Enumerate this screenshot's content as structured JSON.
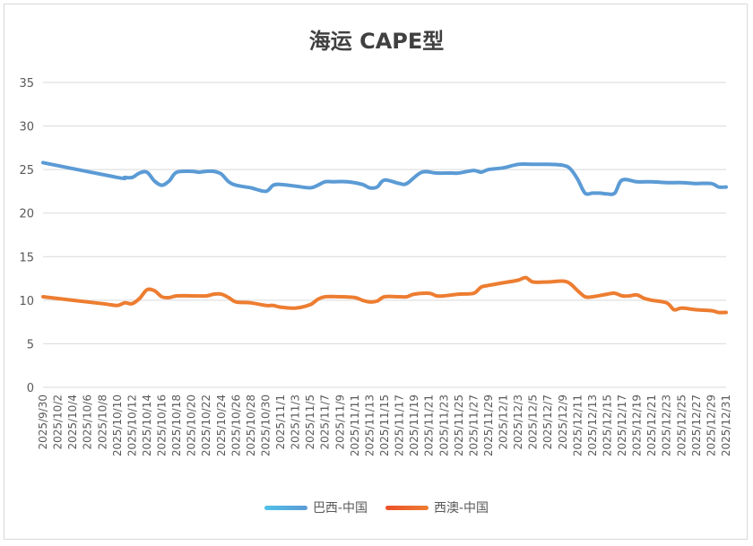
{
  "chart_data": {
    "type": "line",
    "title": "海运 CAPE型",
    "ylim": [
      0,
      35
    ],
    "yticks": [
      0,
      5,
      10,
      15,
      20,
      25,
      30,
      35
    ],
    "grid": true,
    "legend_position": "bottom",
    "x_tick_labels": [
      "2025/9/30",
      "2025/10/2",
      "2025/10/4",
      "2025/10/6",
      "2025/10/8",
      "2025/10/10",
      "2025/10/12",
      "2025/10/14",
      "2025/10/16",
      "2025/10/18",
      "2025/10/20",
      "2025/10/22",
      "2025/10/24",
      "2025/10/26",
      "2025/10/28",
      "2025/10/30",
      "2025/11/1",
      "2025/11/3",
      "2025/11/5",
      "2025/11/7",
      "2025/11/9",
      "2025/11/11",
      "2025/11/13",
      "2025/11/15",
      "2025/11/17",
      "2025/11/19",
      "2025/11/21",
      "2025/11/23",
      "2025/11/25",
      "2025/11/27",
      "2025/11/29",
      "2025/12/1",
      "2025/12/3",
      "2025/12/5",
      "2025/12/7",
      "2025/12/9",
      "2025/12/11",
      "2025/12/13",
      "2025/12/15",
      "2025/12/17",
      "2025/12/19",
      "2025/12/21",
      "2025/12/23",
      "2025/12/25",
      "2025/12/27",
      "2025/12/29",
      "2025/12/31"
    ],
    "series": [
      {
        "name": "巴西-中国",
        "color": "#5b9bd5",
        "legend_color": "#4fc1e9",
        "points": [
          [
            "2025/9/30",
            25.8
          ],
          [
            "2025/10/10",
            24.1
          ],
          [
            "2025/10/11",
            24.1
          ],
          [
            "2025/10/12",
            24.1
          ],
          [
            "2025/10/13",
            24.6
          ],
          [
            "2025/10/14",
            24.7
          ],
          [
            "2025/10/15",
            23.7
          ],
          [
            "2025/10/16",
            23.2
          ],
          [
            "2025/10/17",
            23.7
          ],
          [
            "2025/10/18",
            24.7
          ],
          [
            "2025/10/20",
            24.8
          ],
          [
            "2025/10/21",
            24.7
          ],
          [
            "2025/10/22",
            24.8
          ],
          [
            "2025/10/23",
            24.8
          ],
          [
            "2025/10/24",
            24.5
          ],
          [
            "2025/10/25",
            23.6
          ],
          [
            "2025/10/26",
            23.2
          ],
          [
            "2025/10/28",
            22.9
          ],
          [
            "2025/10/30",
            22.5
          ],
          [
            "2025/10/31",
            23.2
          ],
          [
            "2025/11/1",
            23.3
          ],
          [
            "2025/11/3",
            23.1
          ],
          [
            "2025/11/5",
            22.9
          ],
          [
            "2025/11/6",
            23.2
          ],
          [
            "2025/11/7",
            23.6
          ],
          [
            "2025/11/8",
            23.6
          ],
          [
            "2025/11/10",
            23.6
          ],
          [
            "2025/11/12",
            23.3
          ],
          [
            "2025/11/13",
            22.9
          ],
          [
            "2025/11/14",
            23.0
          ],
          [
            "2025/11/15",
            23.8
          ],
          [
            "2025/11/17",
            23.4
          ],
          [
            "2025/11/18",
            23.4
          ],
          [
            "2025/11/20",
            24.7
          ],
          [
            "2025/11/22",
            24.6
          ],
          [
            "2025/11/24",
            24.6
          ],
          [
            "2025/11/25",
            24.6
          ],
          [
            "2025/11/27",
            24.9
          ],
          [
            "2025/11/28",
            24.7
          ],
          [
            "2025/11/29",
            25.0
          ],
          [
            "2025/12/1",
            25.2
          ],
          [
            "2025/12/3",
            25.6
          ],
          [
            "2025/12/5",
            25.6
          ],
          [
            "2025/12/7",
            25.6
          ],
          [
            "2025/12/9",
            25.5
          ],
          [
            "2025/12/10",
            25.1
          ],
          [
            "2025/12/11",
            23.9
          ],
          [
            "2025/12/12",
            22.3
          ],
          [
            "2025/12/13",
            22.3
          ],
          [
            "2025/12/14",
            22.3
          ],
          [
            "2025/12/15",
            22.2
          ],
          [
            "2025/12/16",
            22.3
          ],
          [
            "2025/12/17",
            23.8
          ],
          [
            "2025/12/19",
            23.6
          ],
          [
            "2025/12/21",
            23.6
          ],
          [
            "2025/12/23",
            23.5
          ],
          [
            "2025/12/25",
            23.5
          ],
          [
            "2025/12/27",
            23.4
          ],
          [
            "2025/12/29",
            23.4
          ],
          [
            "2025/12/30",
            23.0
          ],
          [
            "2025/12/31",
            23.0
          ]
        ]
      },
      {
        "name": "西澳-中国",
        "color": "#ed7d31",
        "legend_color": "#ed4f2a",
        "points": [
          [
            "2025/9/30",
            10.4
          ],
          [
            "2025/10/8",
            9.6
          ],
          [
            "2025/10/10",
            9.4
          ],
          [
            "2025/10/11",
            9.7
          ],
          [
            "2025/10/12",
            9.6
          ],
          [
            "2025/10/13",
            10.2
          ],
          [
            "2025/10/14",
            11.2
          ],
          [
            "2025/10/15",
            11.1
          ],
          [
            "2025/10/16",
            10.4
          ],
          [
            "2025/10/17",
            10.3
          ],
          [
            "2025/10/18",
            10.5
          ],
          [
            "2025/10/20",
            10.5
          ],
          [
            "2025/10/22",
            10.5
          ],
          [
            "2025/10/23",
            10.7
          ],
          [
            "2025/10/24",
            10.7
          ],
          [
            "2025/10/25",
            10.3
          ],
          [
            "2025/10/26",
            9.8
          ],
          [
            "2025/10/28",
            9.7
          ],
          [
            "2025/10/30",
            9.4
          ],
          [
            "2025/10/31",
            9.4
          ],
          [
            "2025/11/1",
            9.2
          ],
          [
            "2025/11/3",
            9.1
          ],
          [
            "2025/11/5",
            9.5
          ],
          [
            "2025/11/6",
            10.1
          ],
          [
            "2025/11/7",
            10.4
          ],
          [
            "2025/11/9",
            10.4
          ],
          [
            "2025/11/11",
            10.3
          ],
          [
            "2025/11/12",
            10.0
          ],
          [
            "2025/11/13",
            9.8
          ],
          [
            "2025/11/14",
            9.9
          ],
          [
            "2025/11/15",
            10.4
          ],
          [
            "2025/11/17",
            10.4
          ],
          [
            "2025/11/18",
            10.4
          ],
          [
            "2025/11/19",
            10.7
          ],
          [
            "2025/11/21",
            10.8
          ],
          [
            "2025/11/22",
            10.5
          ],
          [
            "2025/11/23",
            10.5
          ],
          [
            "2025/11/25",
            10.7
          ],
          [
            "2025/11/27",
            10.8
          ],
          [
            "2025/11/28",
            11.5
          ],
          [
            "2025/11/29",
            11.7
          ],
          [
            "2025/12/1",
            12.0
          ],
          [
            "2025/12/3",
            12.3
          ],
          [
            "2025/12/4",
            12.6
          ],
          [
            "2025/12/5",
            12.1
          ],
          [
            "2025/12/7",
            12.1
          ],
          [
            "2025/12/9",
            12.2
          ],
          [
            "2025/12/10",
            11.9
          ],
          [
            "2025/12/11",
            11.1
          ],
          [
            "2025/12/12",
            10.4
          ],
          [
            "2025/12/13",
            10.4
          ],
          [
            "2025/12/15",
            10.7
          ],
          [
            "2025/12/16",
            10.8
          ],
          [
            "2025/12/17",
            10.5
          ],
          [
            "2025/12/18",
            10.5
          ],
          [
            "2025/12/19",
            10.6
          ],
          [
            "2025/12/20",
            10.2
          ],
          [
            "2025/12/21",
            10.0
          ],
          [
            "2025/12/23",
            9.7
          ],
          [
            "2025/12/24",
            8.9
          ],
          [
            "2025/12/25",
            9.1
          ],
          [
            "2025/12/27",
            8.9
          ],
          [
            "2025/12/29",
            8.8
          ],
          [
            "2025/12/30",
            8.6
          ],
          [
            "2025/12/31",
            8.6
          ]
        ]
      }
    ]
  }
}
